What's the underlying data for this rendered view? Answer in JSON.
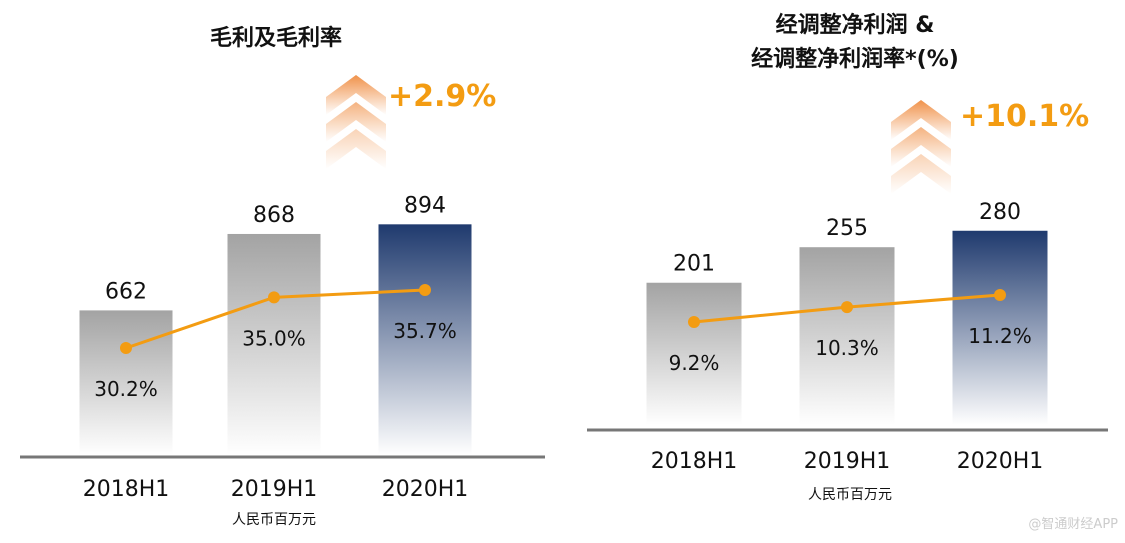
{
  "chart_data": [
    {
      "type": "bar",
      "title": "毛利及毛利率",
      "categories": [
        "2018H1",
        "2019H1",
        "2020H1"
      ],
      "values": [
        662,
        868,
        894
      ],
      "line_series": {
        "values": [
          30.2,
          35.0,
          35.7
        ],
        "labels": [
          "30.2%",
          "35.0%",
          "35.7%"
        ],
        "color": "#F39C12"
      },
      "unit_label": "人民币百万元",
      "growth_label": "+2.9%",
      "colors": {
        "bar": "#A6A6A6",
        "highlight_bar": "#1F3A6E",
        "growth": "#F39C12"
      }
    },
    {
      "type": "bar",
      "title": [
        "经调整净利润 &",
        "经调整净利润率*(%)"
      ],
      "categories": [
        "2018H1",
        "2019H1",
        "2020H1"
      ],
      "values": [
        201,
        255,
        280
      ],
      "line_series": {
        "values": [
          9.2,
          10.3,
          11.2
        ],
        "labels": [
          "9.2%",
          "10.3%",
          "11.2%"
        ],
        "color": "#F39C12"
      },
      "unit_label": "人民币百万元",
      "growth_label": "+10.1%",
      "colors": {
        "bar": "#A6A6A6",
        "highlight_bar": "#1F3A6E",
        "growth": "#F39C12"
      }
    }
  ],
  "watermark": "@智通财经APP"
}
